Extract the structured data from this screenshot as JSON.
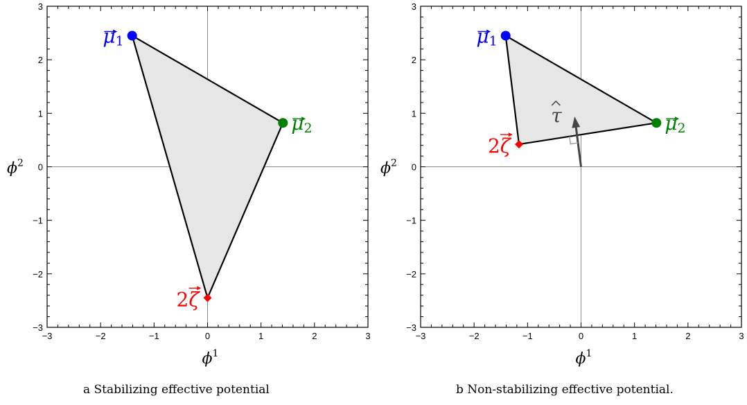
{
  "chart_data": [
    {
      "type": "scatter",
      "caption": "a Stabilizing effective potential",
      "xlabel": "ϕ",
      "xlabel_sup": "1",
      "ylabel": "ϕ",
      "ylabel_sup": "2",
      "xlim": [
        -3,
        3
      ],
      "ylim": [
        -3,
        3
      ],
      "xticks": [
        -3,
        -2,
        -1,
        0,
        1,
        2,
        3
      ],
      "yticks": [
        -3,
        -2,
        -1,
        0,
        1,
        2,
        3
      ],
      "points": [
        {
          "name": "mu1",
          "label_base": "μ",
          "label_sub": "1",
          "x": -1.41,
          "y": 2.45,
          "color": "#0000ff",
          "marker": "circle",
          "label_pos": "left"
        },
        {
          "name": "mu2",
          "label_base": "μ",
          "label_sub": "2",
          "x": 1.41,
          "y": 0.82,
          "color": "#008000",
          "marker": "circle",
          "label_pos": "right"
        },
        {
          "name": "zeta",
          "label_base": "ζ",
          "label_prefix": "2",
          "x": 0.0,
          "y": -2.45,
          "color": "#ff0000",
          "marker": "diamond",
          "label_pos": "left"
        }
      ],
      "triangle": [
        "mu1",
        "mu2",
        "zeta"
      ],
      "fill_color": "#e6e6e6"
    },
    {
      "type": "scatter",
      "caption": "b Non-stabilizing effective potential.",
      "xlabel": "ϕ",
      "xlabel_sup": "1",
      "ylabel": "ϕ",
      "ylabel_sup": "2",
      "xlim": [
        -3,
        3
      ],
      "ylim": [
        -3,
        3
      ],
      "xticks": [
        -3,
        -2,
        -1,
        0,
        1,
        2,
        3
      ],
      "yticks": [
        -3,
        -2,
        -1,
        0,
        1,
        2,
        3
      ],
      "points": [
        {
          "name": "mu1",
          "label_base": "μ",
          "label_sub": "1",
          "x": -1.41,
          "y": 2.45,
          "color": "#0000ff",
          "marker": "circle",
          "label_pos": "left"
        },
        {
          "name": "mu2",
          "label_base": "μ",
          "label_sub": "2",
          "x": 1.41,
          "y": 0.82,
          "color": "#008000",
          "marker": "circle",
          "label_pos": "right"
        },
        {
          "name": "zeta",
          "label_base": "ζ",
          "label_prefix": "2",
          "x": -1.16,
          "y": 0.42,
          "color": "#ff0000",
          "marker": "diamond",
          "label_pos": "left"
        }
      ],
      "triangle": [
        "mu1",
        "mu2",
        "zeta"
      ],
      "fill_color": "#e6e6e6",
      "arrow": {
        "label": "τ",
        "from": [
          0,
          0
        ],
        "to": [
          -0.12,
          0.94
        ],
        "color": "#444444"
      }
    }
  ]
}
